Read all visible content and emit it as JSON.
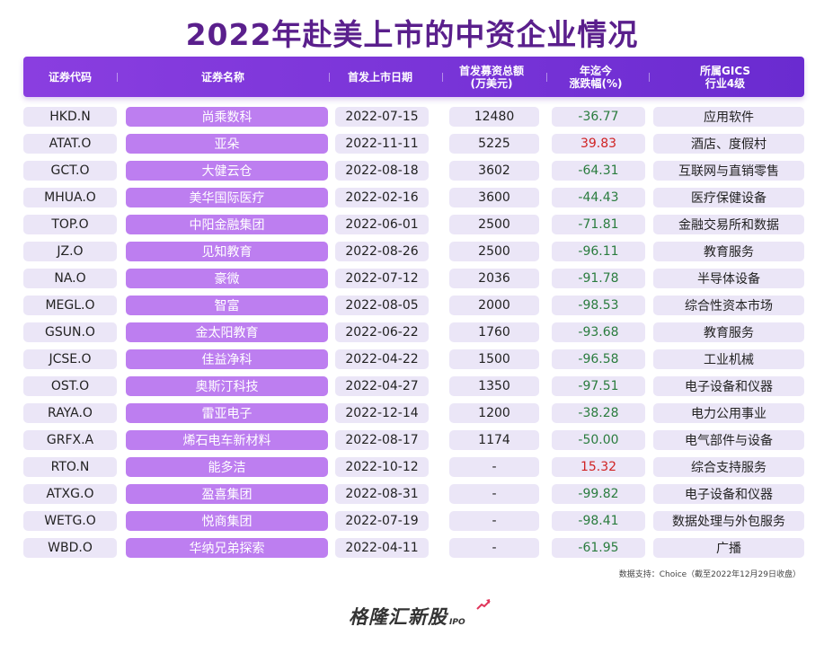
{
  "title": "2022年赴美上市的中资企业情况",
  "header": {
    "code": "证券代码",
    "name": "证券名称",
    "date": "首发上市日期",
    "raise": "首发募资总额\n(万美元)",
    "change": "年迄今\n涨跌幅(%)",
    "industry": "所属GICS\n行业4级"
  },
  "rows": [
    {
      "code": "HKD.N",
      "name": "尚乘数科",
      "date": "2022-07-15",
      "raise": "12480",
      "change": "-36.77",
      "industry": "应用软件"
    },
    {
      "code": "ATAT.O",
      "name": "亚朵",
      "date": "2022-11-11",
      "raise": "5225",
      "change": "39.83",
      "industry": "酒店、度假村"
    },
    {
      "code": "GCT.O",
      "name": "大健云仓",
      "date": "2022-08-18",
      "raise": "3602",
      "change": "-64.31",
      "industry": "互联网与直销零售"
    },
    {
      "code": "MHUA.O",
      "name": "美华国际医疗",
      "date": "2022-02-16",
      "raise": "3600",
      "change": "-44.43",
      "industry": "医疗保健设备"
    },
    {
      "code": "TOP.O",
      "name": "中阳金融集团",
      "date": "2022-06-01",
      "raise": "2500",
      "change": "-71.81",
      "industry": "金融交易所和数据"
    },
    {
      "code": "JZ.O",
      "name": "见知教育",
      "date": "2022-08-26",
      "raise": "2500",
      "change": "-96.11",
      "industry": "教育服务"
    },
    {
      "code": "NA.O",
      "name": "豪微",
      "date": "2022-07-12",
      "raise": "2036",
      "change": "-91.78",
      "industry": "半导体设备"
    },
    {
      "code": "MEGL.O",
      "name": "智富",
      "date": "2022-08-05",
      "raise": "2000",
      "change": "-98.53",
      "industry": "综合性资本市场"
    },
    {
      "code": "GSUN.O",
      "name": "金太阳教育",
      "date": "2022-06-22",
      "raise": "1760",
      "change": "-93.68",
      "industry": "教育服务"
    },
    {
      "code": "JCSE.O",
      "name": "佳益净科",
      "date": "2022-04-22",
      "raise": "1500",
      "change": "-96.58",
      "industry": "工业机械"
    },
    {
      "code": "OST.O",
      "name": "奥斯汀科技",
      "date": "2022-04-27",
      "raise": "1350",
      "change": "-97.51",
      "industry": "电子设备和仪器"
    },
    {
      "code": "RAYA.O",
      "name": "雷亚电子",
      "date": "2022-12-14",
      "raise": "1200",
      "change": "-38.28",
      "industry": "电力公用事业"
    },
    {
      "code": "GRFX.A",
      "name": "烯石电车新材料",
      "date": "2022-08-17",
      "raise": "1174",
      "change": "-50.00",
      "industry": "电气部件与设备"
    },
    {
      "code": "RTO.N",
      "name": "能多洁",
      "date": "2022-10-12",
      "raise": "-",
      "change": "15.32",
      "industry": "综合支持服务"
    },
    {
      "code": "ATXG.O",
      "name": "盈喜集团",
      "date": "2022-08-31",
      "raise": "-",
      "change": "-99.82",
      "industry": "电子设备和仪器"
    },
    {
      "code": "WETG.O",
      "name": "悦商集团",
      "date": "2022-07-19",
      "raise": "-",
      "change": "-98.41",
      "industry": "数据处理与外包服务"
    },
    {
      "code": "WBD.O",
      "name": "华纳兄弟探索",
      "date": "2022-04-11",
      "raise": "-",
      "change": "-61.95",
      "industry": "广播"
    }
  ],
  "footnote": "数据支持：Choice（截至2022年12月29日收盘）",
  "logo": {
    "text": "格隆汇新股",
    "sub": "IPO"
  },
  "colors": {
    "title": "#5a1f8c",
    "header": "#7a35d8",
    "name_cell": "#bd7ef0",
    "cell": "#ebe6f7",
    "positive": "#d02323",
    "negative": "#2a7c3e"
  }
}
